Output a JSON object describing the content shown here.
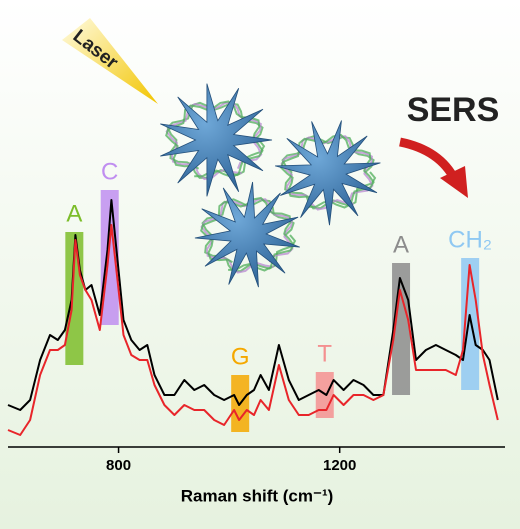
{
  "chart_data": {
    "type": "line",
    "laser_label": "Laser",
    "sers_label": "SERS",
    "x_label": "Raman shift (cm⁻¹)",
    "x": [
      600,
      622,
      640,
      658,
      676,
      690,
      703,
      715,
      722,
      730,
      740,
      751,
      766,
      780,
      787,
      798,
      809,
      823,
      838,
      852,
      865,
      883,
      901,
      919,
      937,
      955,
      973,
      991,
      1009,
      1018,
      1032,
      1045,
      1057,
      1072,
      1090,
      1108,
      1126,
      1144,
      1162,
      1176,
      1189,
      1207,
      1225,
      1243,
      1261,
      1279,
      1297,
      1309,
      1324,
      1338,
      1356,
      1374,
      1392,
      1410,
      1423,
      1435,
      1446,
      1459,
      1471,
      1486
    ],
    "series": [
      {
        "color": "#000000",
        "values": [
          55,
          50,
          60,
          100,
          125,
          120,
          130,
          160,
          225,
          190,
          170,
          175,
          145,
          210,
          260,
          200,
          140,
          120,
          110,
          115,
          85,
          65,
          65,
          80,
          70,
          75,
          65,
          60,
          65,
          55,
          65,
          70,
          85,
          70,
          115,
          80,
          60,
          65,
          70,
          65,
          80,
          70,
          80,
          75,
          65,
          65,
          130,
          182,
          160,
          100,
          110,
          115,
          110,
          105,
          100,
          145,
          115,
          110,
          100,
          60
        ]
      },
      {
        "color": "#e8252a",
        "values": [
          30,
          25,
          40,
          85,
          110,
          110,
          115,
          150,
          220,
          185,
          170,
          160,
          130,
          195,
          235,
          180,
          125,
          105,
          100,
          100,
          75,
          55,
          45,
          55,
          50,
          50,
          40,
          35,
          50,
          40,
          50,
          45,
          60,
          50,
          95,
          60,
          45,
          45,
          50,
          50,
          65,
          55,
          65,
          65,
          60,
          65,
          120,
          170,
          140,
          90,
          90,
          90,
          90,
          85,
          110,
          195,
          160,
          105,
          75,
          40
        ]
      }
    ],
    "annotations": [
      {
        "label": "A",
        "x": 720,
        "color": "#7cbd2a"
      },
      {
        "label": "C",
        "x": 784,
        "color": "#c08ef0"
      },
      {
        "label": "G",
        "x": 1020,
        "color": "#f5a800"
      },
      {
        "label": "T",
        "x": 1173,
        "color": "#f49090"
      },
      {
        "label": "A",
        "x": 1311,
        "color": "#8c8c8c"
      },
      {
        "label": "CH₂",
        "x": 1436,
        "color": "#8fc8f2"
      }
    ],
    "xlim": [
      600,
      1490
    ],
    "ylim": [
      0,
      300
    ],
    "xticks": [
      800,
      1200
    ]
  }
}
